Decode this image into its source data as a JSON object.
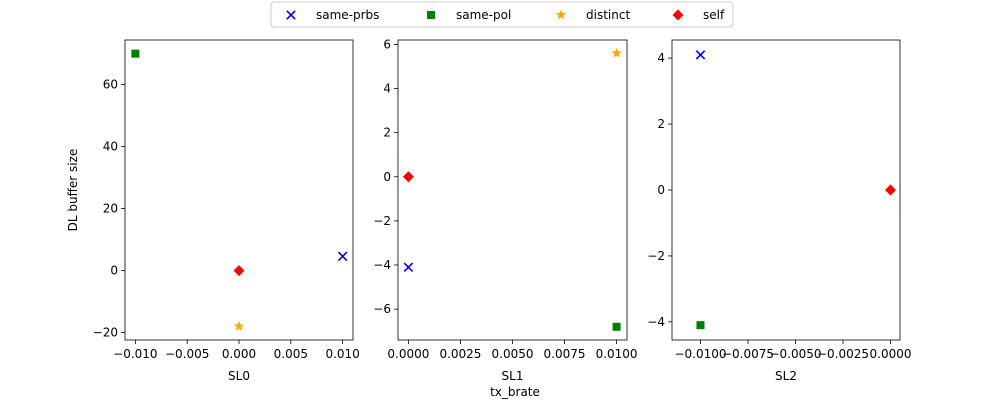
{
  "figure": {
    "xlabel_shared": "tx_brate",
    "ylabel_shared": "DL buffer size"
  },
  "legend": {
    "placement": "top-center",
    "entries": [
      {
        "name": "same-prbs",
        "marker": "x",
        "color": "#0000ff"
      },
      {
        "name": "same-pol",
        "marker": "square",
        "color": "#008000"
      },
      {
        "name": "distinct",
        "marker": "star",
        "color": "#ffa500"
      },
      {
        "name": "self",
        "marker": "diamond",
        "color": "#ff0000"
      }
    ]
  },
  "chart_data": [
    {
      "type": "scatter",
      "xlabel": "SL0",
      "ylabel": "DL buffer size",
      "xlim": [
        -0.011,
        0.011
      ],
      "ylim": [
        -22.4,
        74.4
      ],
      "xticks": [
        -0.01,
        -0.005,
        0.0,
        0.005,
        0.01
      ],
      "xtick_labels": [
        "−0.010",
        "−0.005",
        "0.000",
        "0.005",
        "0.010"
      ],
      "yticks": [
        -20,
        0,
        20,
        40,
        60
      ],
      "ytick_labels": [
        "−20",
        "0",
        "20",
        "40",
        "60"
      ],
      "series": [
        {
          "name": "same-prbs",
          "points": [
            {
              "x": 0.01,
              "y": 4.6
            }
          ]
        },
        {
          "name": "same-pol",
          "points": [
            {
              "x": -0.01,
              "y": 70.0
            }
          ]
        },
        {
          "name": "distinct",
          "points": [
            {
              "x": 0.0,
              "y": -18.0
            }
          ]
        },
        {
          "name": "self",
          "points": [
            {
              "x": 0.0,
              "y": 0.0
            }
          ]
        }
      ]
    },
    {
      "type": "scatter",
      "xlabel": "SL1",
      "xlim": [
        -0.0005,
        0.0105
      ],
      "ylim": [
        -7.4,
        6.2
      ],
      "xticks": [
        0.0,
        0.0025,
        0.005,
        0.0075,
        0.01
      ],
      "xtick_labels": [
        "0.0000",
        "0.0025",
        "0.0050",
        "0.0075",
        "0.0100"
      ],
      "yticks": [
        -6,
        -4,
        -2,
        0,
        2,
        4,
        6
      ],
      "ytick_labels": [
        "−6",
        "−4",
        "−2",
        "0",
        "2",
        "4",
        "6"
      ],
      "series": [
        {
          "name": "same-prbs",
          "points": [
            {
              "x": 0.0,
              "y": -4.1
            }
          ]
        },
        {
          "name": "same-pol",
          "points": [
            {
              "x": 0.01,
              "y": -6.8
            }
          ]
        },
        {
          "name": "distinct",
          "points": [
            {
              "x": 0.01,
              "y": 5.6
            }
          ]
        },
        {
          "name": "self",
          "points": [
            {
              "x": 0.0,
              "y": 0.0
            }
          ]
        }
      ]
    },
    {
      "type": "scatter",
      "xlabel": "SL2",
      "xlim": [
        -0.0115,
        0.0005
      ],
      "ylim": [
        -4.55,
        4.55
      ],
      "xticks": [
        -0.01,
        -0.0075,
        -0.005,
        -0.0025,
        0.0
      ],
      "xtick_labels": [
        "−0.0100",
        "−0.0075",
        "−0.0050",
        "−0.0025",
        "0.0000"
      ],
      "yticks": [
        -4,
        -2,
        0,
        2,
        4
      ],
      "ytick_labels": [
        "−4",
        "−2",
        "0",
        "2",
        "4"
      ],
      "series": [
        {
          "name": "same-prbs",
          "points": [
            {
              "x": -0.01,
              "y": 4.1
            }
          ]
        },
        {
          "name": "same-pol",
          "points": [
            {
              "x": -0.01,
              "y": -4.1
            }
          ]
        },
        {
          "name": "self",
          "points": [
            {
              "x": 0.0,
              "y": 0.0
            }
          ]
        }
      ]
    }
  ]
}
